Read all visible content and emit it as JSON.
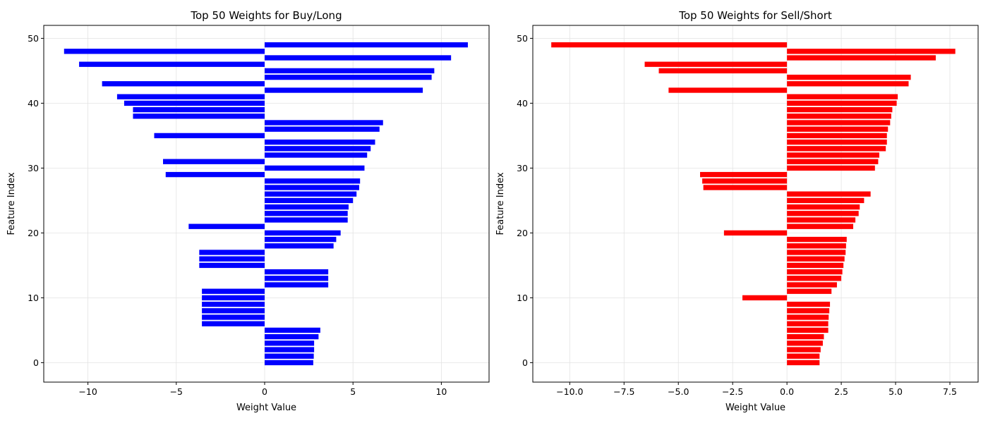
{
  "chart_data": [
    {
      "type": "bar",
      "orientation": "horizontal",
      "title": "Top 50 Weights for Buy/Long",
      "xlabel": "Weight Value",
      "ylabel": "Feature Index",
      "xlim": [
        -12.5,
        12.7
      ],
      "ylim": [
        -3,
        52
      ],
      "xticks": [
        -10,
        -5,
        0,
        5,
        10
      ],
      "xtick_labels": [
        "−10",
        "−5",
        "0",
        "5",
        "10"
      ],
      "yticks": [
        0,
        10,
        20,
        30,
        40,
        50
      ],
      "ytick_labels": [
        "0",
        "10",
        "20",
        "30",
        "40",
        "50"
      ],
      "grid": true,
      "color": "#0000ff",
      "x": [
        0,
        1,
        2,
        3,
        4,
        5,
        6,
        7,
        8,
        9,
        10,
        11,
        12,
        13,
        14,
        15,
        16,
        17,
        18,
        19,
        20,
        21,
        22,
        23,
        24,
        25,
        26,
        27,
        28,
        29,
        30,
        31,
        32,
        33,
        34,
        35,
        36,
        37,
        38,
        39,
        40,
        41,
        42,
        43,
        44,
        45,
        46,
        47,
        48,
        49
      ],
      "values": [
        2.75,
        2.78,
        2.8,
        2.8,
        3.05,
        3.15,
        -3.55,
        -3.55,
        -3.55,
        -3.55,
        -3.55,
        -3.55,
        3.6,
        3.6,
        3.6,
        -3.7,
        -3.7,
        -3.7,
        3.9,
        4.05,
        4.3,
        -4.3,
        4.7,
        4.7,
        4.75,
        5.0,
        5.2,
        5.35,
        5.4,
        -5.6,
        5.65,
        -5.75,
        5.8,
        6.0,
        6.25,
        -6.25,
        6.5,
        6.7,
        -7.45,
        -7.45,
        -7.95,
        -8.35,
        8.95,
        -9.2,
        9.45,
        9.6,
        -10.5,
        10.55,
        -11.35,
        11.5
      ]
    },
    {
      "type": "bar",
      "orientation": "horizontal",
      "title": "Top 50 Weights for Sell/Short",
      "xlabel": "Weight Value",
      "ylabel": "Feature Index",
      "xlim": [
        -11.7,
        8.8
      ],
      "ylim": [
        -3,
        52
      ],
      "xticks": [
        -10,
        -7.5,
        -5,
        -2.5,
        0,
        2.5,
        5,
        7.5
      ],
      "xtick_labels": [
        "−10.0",
        "−7.5",
        "−5.0",
        "−2.5",
        "0.0",
        "2.5",
        "5.0",
        "7.5"
      ],
      "yticks": [
        0,
        10,
        20,
        30,
        40,
        50
      ],
      "ytick_labels": [
        "0",
        "10",
        "20",
        "30",
        "40",
        "50"
      ],
      "grid": true,
      "color": "#ff0000",
      "x": [
        0,
        1,
        2,
        3,
        4,
        5,
        6,
        7,
        8,
        9,
        10,
        11,
        12,
        13,
        14,
        15,
        16,
        17,
        18,
        19,
        20,
        21,
        22,
        23,
        24,
        25,
        26,
        27,
        28,
        29,
        30,
        31,
        32,
        33,
        34,
        35,
        36,
        37,
        38,
        39,
        40,
        41,
        42,
        43,
        44,
        45,
        46,
        47,
        48,
        49
      ],
      "values": [
        1.5,
        1.5,
        1.55,
        1.65,
        1.7,
        1.9,
        1.9,
        1.92,
        1.95,
        1.98,
        -2.05,
        2.05,
        2.3,
        2.5,
        2.55,
        2.6,
        2.65,
        2.7,
        2.72,
        2.75,
        -2.9,
        3.05,
        3.15,
        3.3,
        3.35,
        3.55,
        3.85,
        -3.85,
        -3.9,
        -4.0,
        4.05,
        4.2,
        4.25,
        4.55,
        4.6,
        4.6,
        4.65,
        4.75,
        4.8,
        4.85,
        5.05,
        5.1,
        -5.45,
        5.6,
        5.7,
        -5.9,
        -6.55,
        6.85,
        7.75,
        -10.85
      ]
    }
  ]
}
